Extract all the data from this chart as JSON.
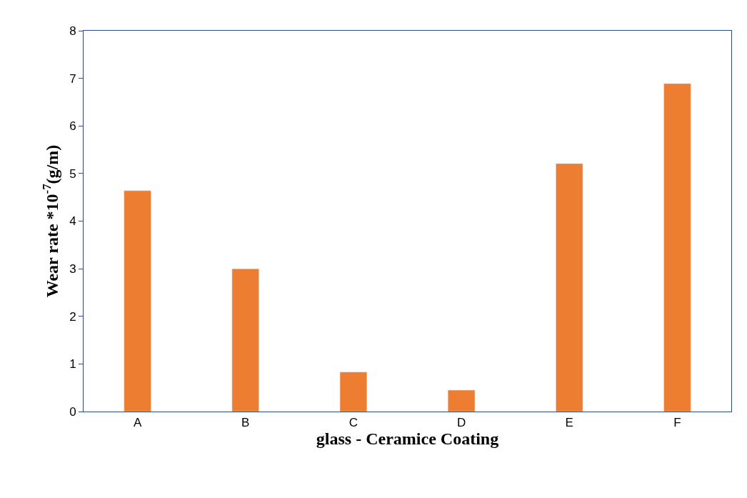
{
  "chart_data": {
    "type": "bar",
    "xlabel": "glass - Ceramice Coating",
    "ylabel": "Wear rate *10$^{-7}$(g/m)",
    "categories": [
      "A",
      "B",
      "C",
      "D",
      "E",
      "F"
    ],
    "values": [
      4.64,
      3.0,
      0.83,
      0.45,
      5.21,
      6.89
    ],
    "color": "#ed7d31",
    "ylim": [
      0,
      8
    ],
    "yticks": [
      0,
      1,
      2,
      3,
      4,
      5,
      6,
      7,
      8
    ],
    "grid": false
  }
}
